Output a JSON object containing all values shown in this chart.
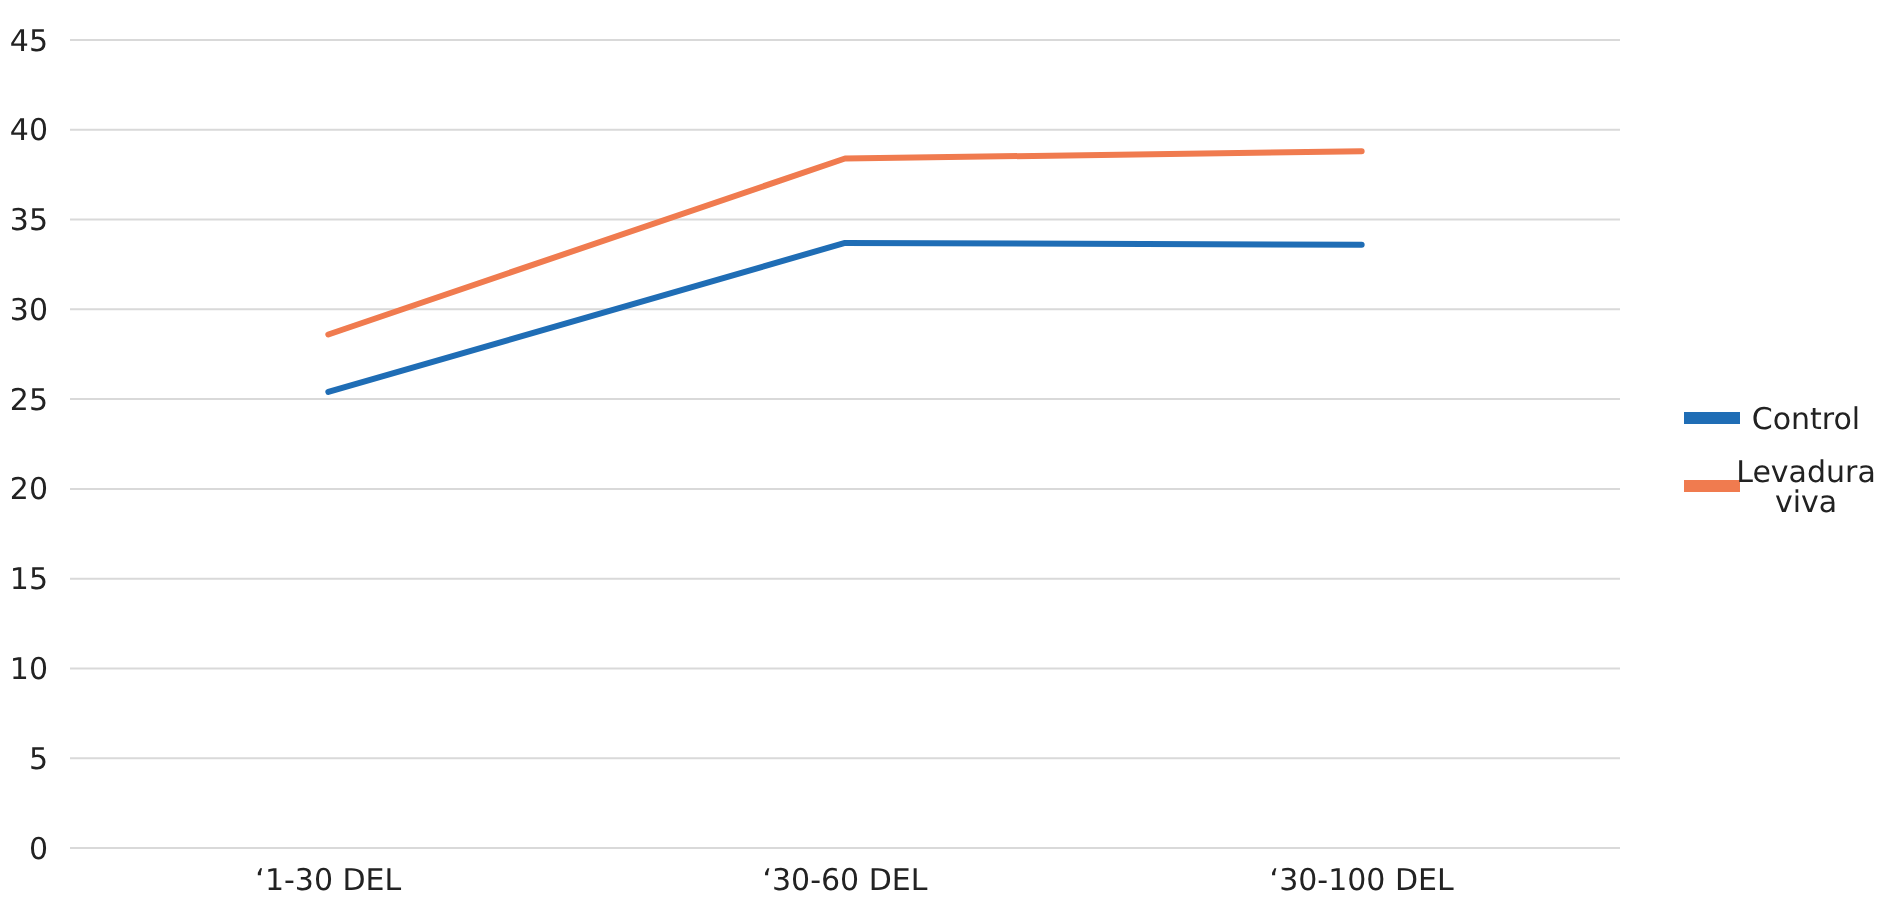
{
  "chart_data": {
    "type": "line",
    "categories": [
      "‘1-30 DEL",
      "‘30-60 DEL",
      "‘30-100 DEL"
    ],
    "series": [
      {
        "name": "Control",
        "color": "#1f6db5",
        "values": [
          25.4,
          33.7,
          33.6
        ]
      },
      {
        "name": "Levadura viva",
        "color": "#f07b4f",
        "values": [
          28.6,
          38.4,
          38.8
        ]
      }
    ],
    "ylim": [
      0,
      45
    ],
    "yticks": [
      0,
      5,
      10,
      15,
      20,
      25,
      30,
      35,
      40,
      45
    ],
    "grid": "y",
    "legend": "right",
    "marker": "none",
    "line_style": "solid"
  }
}
